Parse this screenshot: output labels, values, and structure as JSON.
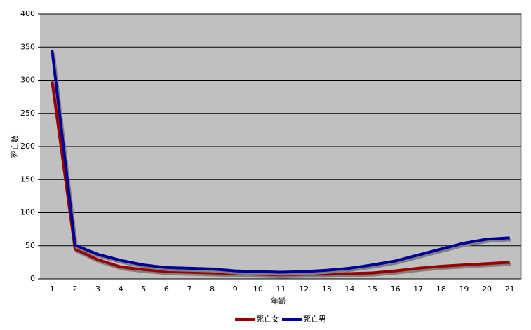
{
  "chart_data": {
    "type": "line",
    "x_label": "年齢",
    "y_label": "死亡数",
    "categories": [
      1,
      2,
      3,
      4,
      5,
      6,
      7,
      8,
      9,
      10,
      11,
      12,
      13,
      14,
      15,
      16,
      17,
      18,
      19,
      20,
      21
    ],
    "series": [
      {
        "name": "死亡女",
        "color": "#990000",
        "values": [
          298,
          45,
          29,
          18,
          14,
          11,
          10,
          9,
          8,
          7,
          6,
          7,
          7,
          8,
          9,
          12,
          16,
          19,
          21,
          23,
          25
        ]
      },
      {
        "name": "死亡男",
        "color": "#000099",
        "values": [
          345,
          51,
          37,
          28,
          21,
          17,
          16,
          15,
          12,
          11,
          10,
          11,
          13,
          16,
          21,
          27,
          36,
          45,
          54,
          60,
          62
        ]
      }
    ],
    "ylim": [
      0,
      400
    ],
    "yticks": [
      0,
      50,
      100,
      150,
      200,
      250,
      300,
      350,
      400
    ],
    "grid": true,
    "plot_background": "#c0c0c0",
    "legend": "bottom"
  }
}
